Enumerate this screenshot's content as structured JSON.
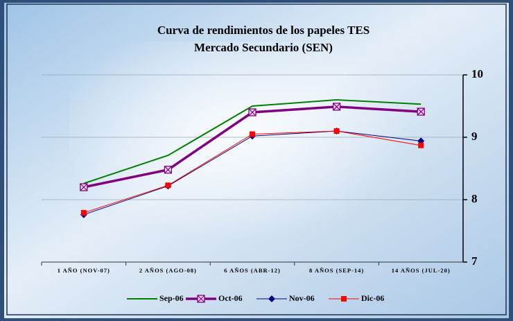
{
  "chart_data": {
    "type": "line",
    "title": "Curva de rendimientos de los papeles TES",
    "subtitle": "Mercado Secundario (SEN)",
    "categories": [
      "1 AÑO (NOV-07)",
      "2 AÑOS (AGO-08)",
      "6 AÑOS (ABR-12)",
      "8 AÑOS (SEP-14)",
      "14 AÑOS (JUL-20)"
    ],
    "series": [
      {
        "name": "Sep-06",
        "color": "#008000",
        "marker": "none",
        "values": [
          8.26,
          8.71,
          9.5,
          9.6,
          9.53
        ]
      },
      {
        "name": "Oct-06",
        "color": "#800080",
        "marker": "square-x",
        "values": [
          8.2,
          8.48,
          9.4,
          9.49,
          9.41
        ]
      },
      {
        "name": "Nov-06",
        "color": "#000080",
        "marker": "diamond",
        "values": [
          7.76,
          8.22,
          9.02,
          9.1,
          8.94
        ]
      },
      {
        "name": "Dic-06",
        "color": "#ff0000",
        "marker": "square",
        "values": [
          7.79,
          8.23,
          9.05,
          9.1,
          8.87
        ]
      }
    ],
    "ylim": [
      7,
      10
    ],
    "yticks": [
      7,
      8,
      9,
      10
    ],
    "grid": true,
    "y_axis_side": "right",
    "legend": "bottom"
  }
}
